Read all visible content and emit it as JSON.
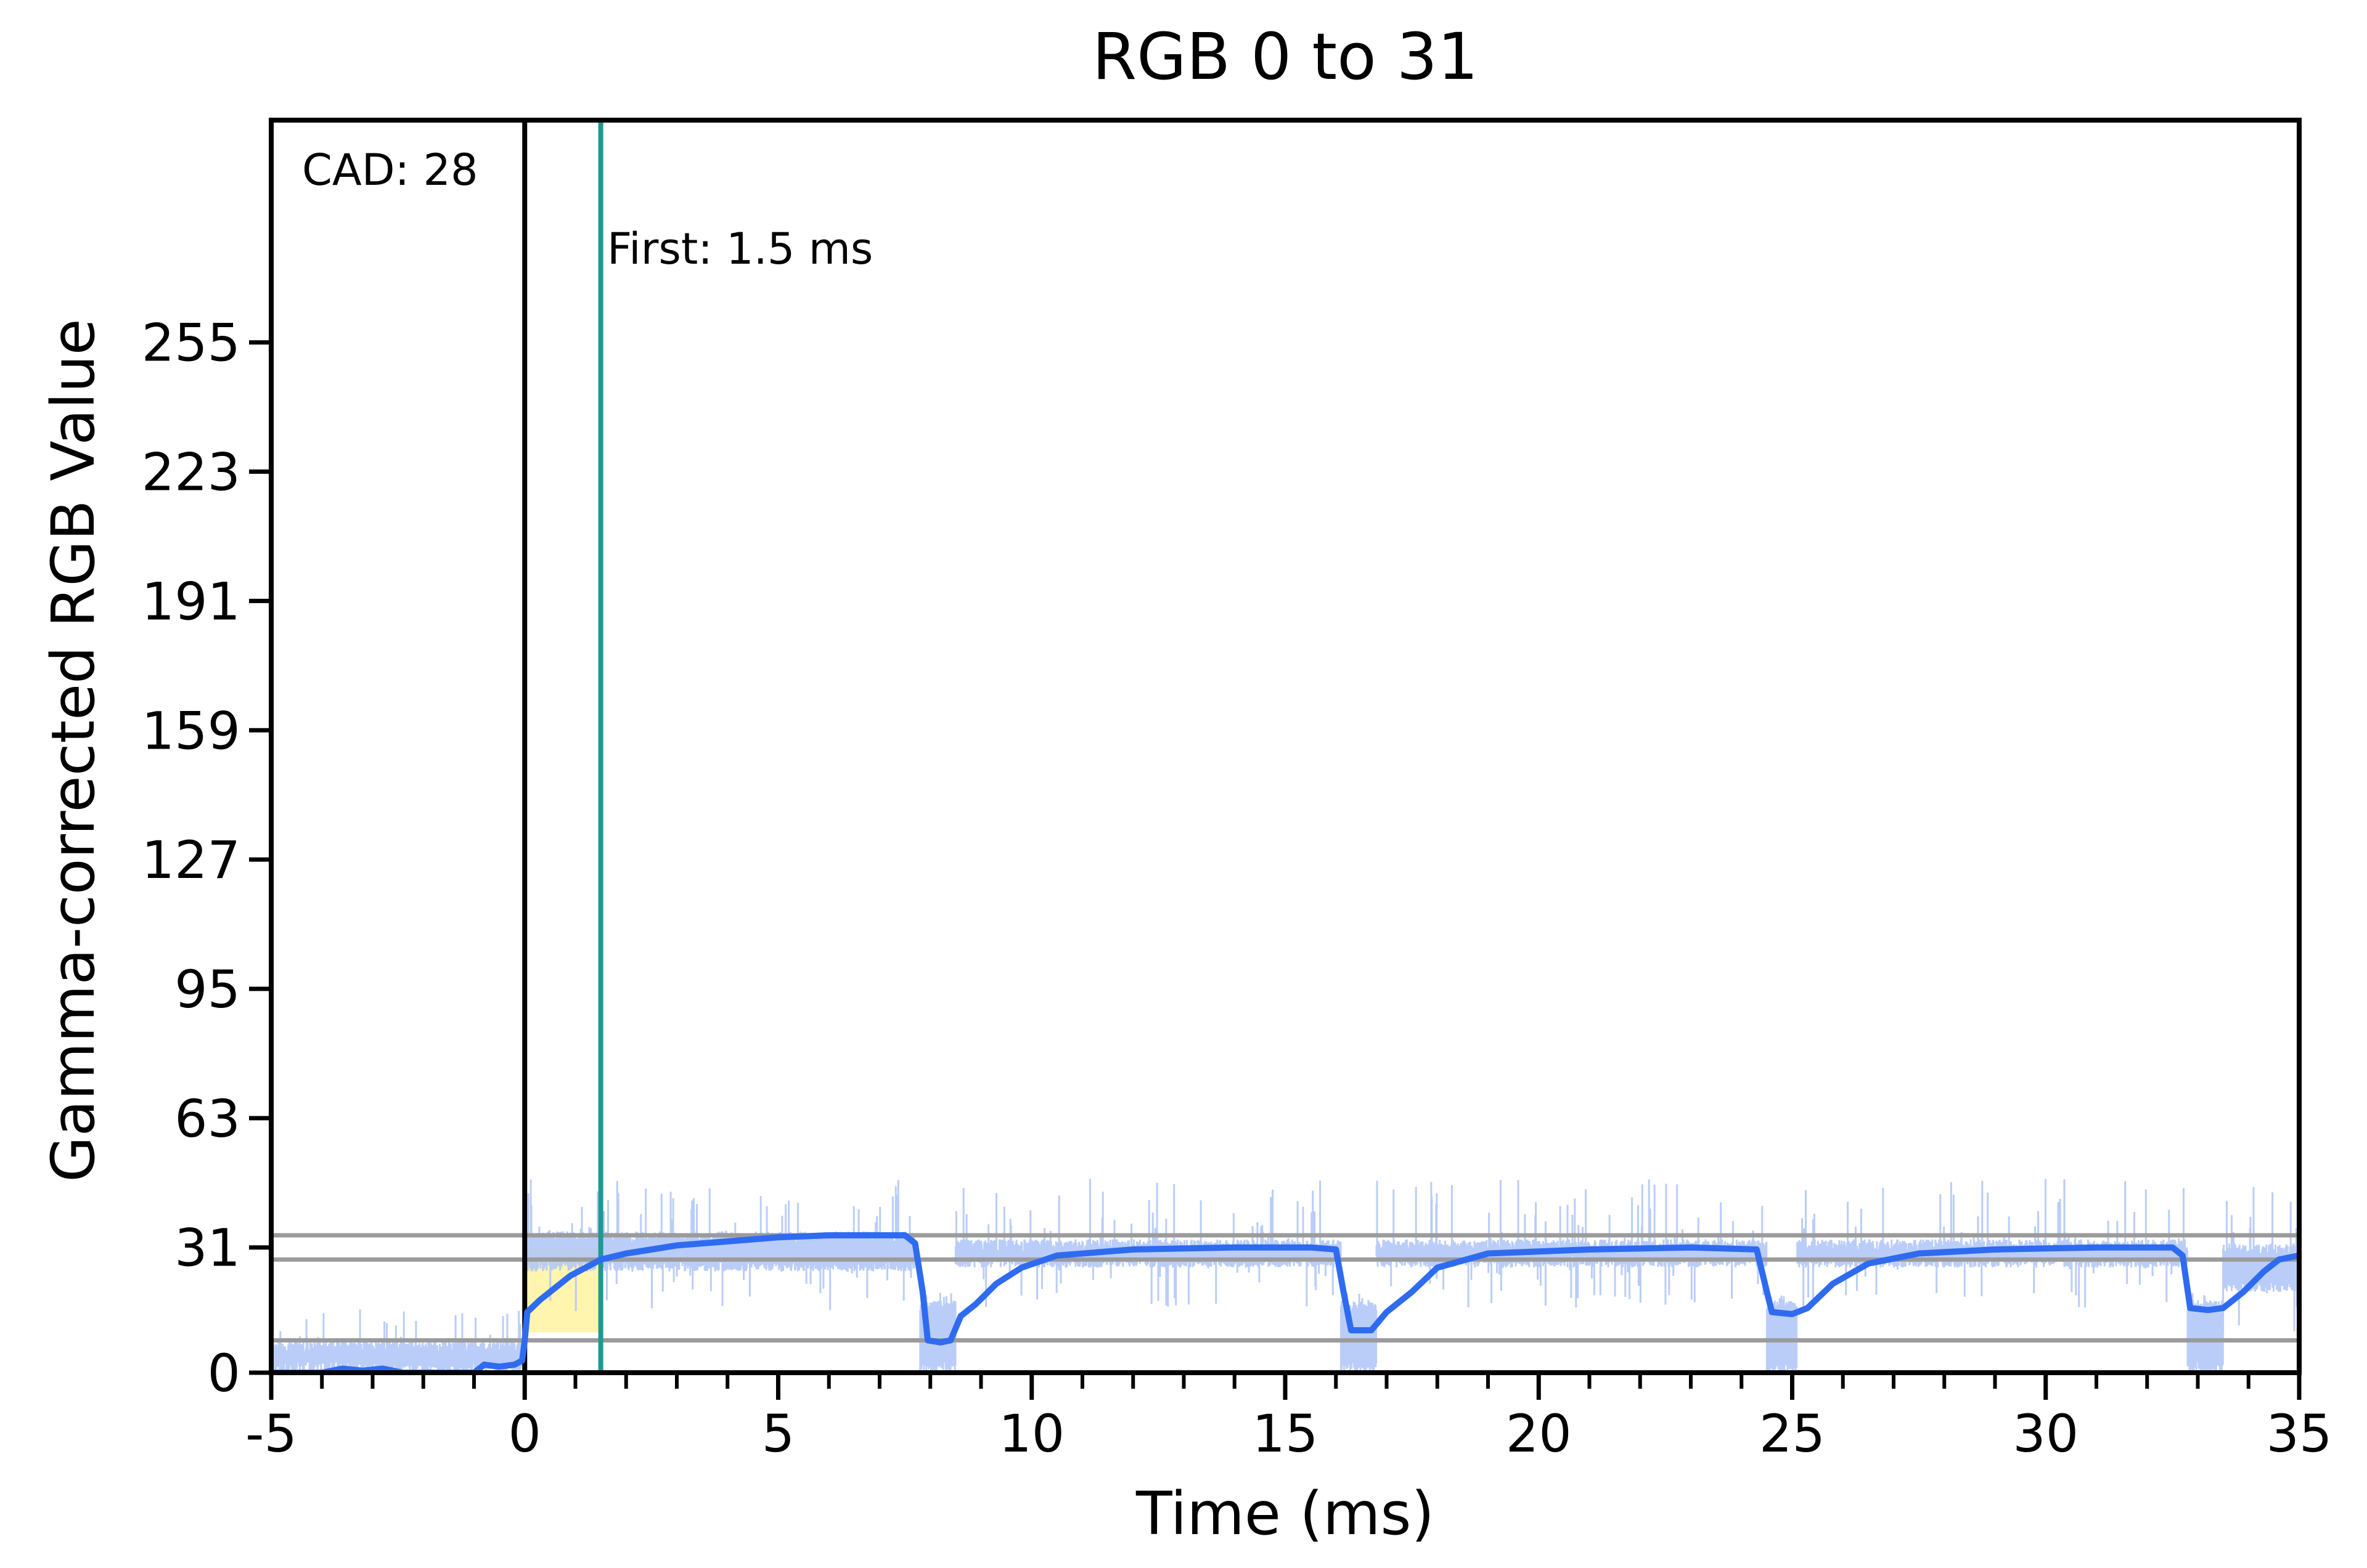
{
  "chart_data": {
    "type": "line",
    "title": "RGB 0 to 31",
    "xlabel": "Time (ms)",
    "ylabel": "Gamma-corrected RGB Value",
    "xlim": [
      -5,
      35
    ],
    "ylim": [
      0,
      310
    ],
    "x_ticks": [
      -5,
      0,
      5,
      10,
      15,
      20,
      25,
      30,
      35
    ],
    "x_tick_labels": [
      "-5",
      "0",
      "5",
      "10",
      "15",
      "20",
      "25",
      "30",
      "35"
    ],
    "x_minor_step": 1,
    "y_ticks": [
      0,
      31,
      63,
      95,
      127,
      159,
      191,
      223,
      255
    ],
    "y_tick_labels": [
      "0",
      "31",
      "63",
      "95",
      "127",
      "159",
      "191",
      "223",
      "255"
    ],
    "grid": false,
    "reference_lines": [
      {
        "name": "upper-tolerance",
        "y": 34
      },
      {
        "name": "lower-tolerance",
        "y": 28
      },
      {
        "name": "start-tolerance",
        "y": 8
      }
    ],
    "vertical_markers": [
      {
        "name": "stimulus-start",
        "x": 0,
        "color": "#000000"
      },
      {
        "name": "first-response",
        "x": 1.5,
        "color": "#1a9a93",
        "label": "First: 1.5 ms"
      }
    ],
    "annotation": "CAD: 28",
    "highlight_region": {
      "x": [
        0,
        1.5
      ],
      "color": "#fff3a0"
    },
    "series": [
      {
        "role": "smoothed",
        "color": "#2f6bf0",
        "points": [
          [
            -5,
            0
          ],
          [
            -4,
            0
          ],
          [
            -3.6,
            1
          ],
          [
            -3.2,
            0.5
          ],
          [
            -2.8,
            1
          ],
          [
            -2.4,
            0
          ],
          [
            -1.5,
            0
          ],
          [
            -1,
            0
          ],
          [
            -0.8,
            2
          ],
          [
            -0.5,
            1.5
          ],
          [
            -0.2,
            2
          ],
          [
            -0.05,
            3
          ],
          [
            0,
            8
          ],
          [
            0.05,
            15
          ],
          [
            0.3,
            18
          ],
          [
            0.6,
            21
          ],
          [
            0.9,
            24
          ],
          [
            1.2,
            26
          ],
          [
            1.5,
            28
          ],
          [
            2,
            29.5
          ],
          [
            2.5,
            30.5
          ],
          [
            3,
            31.5
          ],
          [
            4,
            32.5
          ],
          [
            5,
            33.5
          ],
          [
            6,
            34
          ],
          [
            7,
            34
          ],
          [
            7.5,
            34
          ],
          [
            7.7,
            32
          ],
          [
            7.85,
            20
          ],
          [
            7.95,
            8
          ],
          [
            8.2,
            7.5
          ],
          [
            8.4,
            8
          ],
          [
            8.6,
            14
          ],
          [
            8.9,
            17
          ],
          [
            9.3,
            22
          ],
          [
            9.8,
            26
          ],
          [
            10.5,
            29
          ],
          [
            12,
            30.5
          ],
          [
            14,
            31
          ],
          [
            15.5,
            31
          ],
          [
            16,
            30.5
          ],
          [
            16.15,
            20
          ],
          [
            16.3,
            10.5
          ],
          [
            16.7,
            10.5
          ],
          [
            17,
            15
          ],
          [
            17.5,
            20
          ],
          [
            18,
            26
          ],
          [
            19,
            29.5
          ],
          [
            21,
            30.5
          ],
          [
            23,
            31
          ],
          [
            24.3,
            30.5
          ],
          [
            24.5,
            20
          ],
          [
            24.6,
            15
          ],
          [
            25,
            14.5
          ],
          [
            25.3,
            16
          ],
          [
            25.8,
            22
          ],
          [
            26.5,
            27
          ],
          [
            27.5,
            29.5
          ],
          [
            29,
            30.5
          ],
          [
            31,
            31
          ],
          [
            32.5,
            31
          ],
          [
            32.7,
            29
          ],
          [
            32.85,
            16
          ],
          [
            33.2,
            15.5
          ],
          [
            33.5,
            16
          ],
          [
            33.9,
            20
          ],
          [
            34.3,
            25
          ],
          [
            34.6,
            28
          ],
          [
            35,
            29
          ]
        ]
      },
      {
        "role": "raw",
        "color": "#b3c8f7",
        "bands": [
          {
            "x": [
              -5,
              0
            ],
            "low": 0,
            "high": 8,
            "spike_high": 16
          },
          {
            "x": [
              0,
              7.7
            ],
            "low": 25,
            "high": 35,
            "spike_high": 48
          },
          {
            "x": [
              7.8,
              8.5
            ],
            "low": 0,
            "high": 18,
            "spike_high": 20
          },
          {
            "x": [
              8.5,
              16.1
            ],
            "low": 26,
            "high": 33,
            "spike_high": 48
          },
          {
            "x": [
              16.1,
              16.8
            ],
            "low": 0,
            "high": 18,
            "spike_high": 20
          },
          {
            "x": [
              16.8,
              24.5
            ],
            "low": 26,
            "high": 33,
            "spike_high": 48
          },
          {
            "x": [
              24.5,
              25.1
            ],
            "low": 0,
            "high": 18,
            "spike_high": 20
          },
          {
            "x": [
              25.1,
              32.8
            ],
            "low": 26,
            "high": 33,
            "spike_high": 48
          },
          {
            "x": [
              32.8,
              33.5
            ],
            "low": 0,
            "high": 18,
            "spike_high": 20
          },
          {
            "x": [
              33.5,
              35
            ],
            "low": 20,
            "high": 32,
            "spike_high": 46
          }
        ]
      }
    ]
  }
}
